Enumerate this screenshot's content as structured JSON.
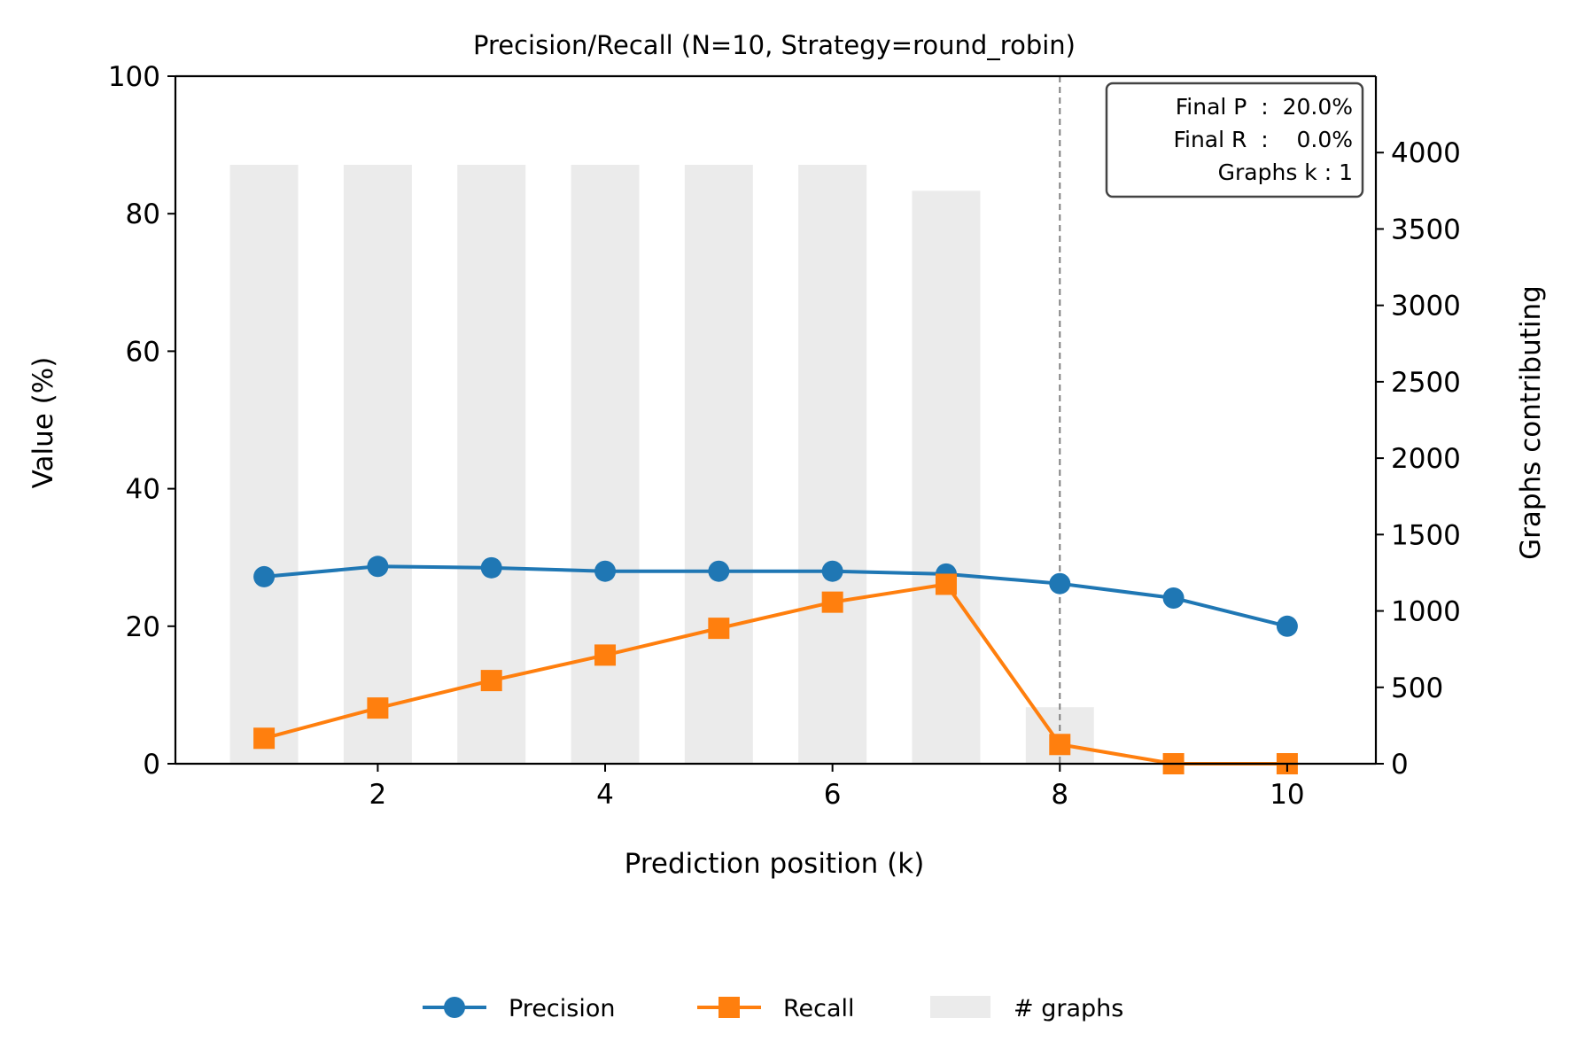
{
  "chart_data": {
    "type": "line",
    "title": "Precision/Recall (N=10, Strategy=round_robin)",
    "xlabel": "Prediction position (k)",
    "ylabel": "Value (%)",
    "y2label": "Graphs contributing",
    "xlim": [
      0.22,
      10.78
    ],
    "ylim": [
      0,
      100
    ],
    "y2lim": [
      0,
      4500
    ],
    "x_ticks": [
      2,
      4,
      6,
      8,
      10
    ],
    "y_ticks": [
      0,
      20,
      40,
      60,
      80,
      100
    ],
    "y2_ticks": [
      0,
      500,
      1000,
      1500,
      2000,
      2500,
      3000,
      3500,
      4000
    ],
    "grid": false,
    "x": [
      1,
      2,
      3,
      4,
      5,
      6,
      7,
      8,
      9,
      10
    ],
    "series": [
      {
        "name": "Precision",
        "axis": "left",
        "marker": "circle",
        "color": "#1f77b4",
        "values": [
          27.2,
          28.7,
          28.5,
          28.0,
          28.0,
          28.0,
          27.6,
          26.2,
          24.1,
          20.0
        ]
      },
      {
        "name": "Recall",
        "axis": "left",
        "marker": "square",
        "color": "#ff7f0e",
        "values": [
          3.7,
          8.1,
          12.1,
          15.8,
          19.7,
          23.5,
          26.1,
          2.8,
          0.0,
          0.0
        ]
      }
    ],
    "bars": {
      "name": "# graphs",
      "axis": "right",
      "color": "#ebebeb",
      "values": [
        3920,
        3920,
        3920,
        3920,
        3920,
        3920,
        3750,
        370,
        0,
        0
      ]
    },
    "vline": {
      "x": 8,
      "color": "#808080",
      "style": "dashed"
    },
    "annotation": {
      "lines": [
        "Final P  :  20.0%",
        "Final R  :    0.0%",
        "Graphs k : 1"
      ]
    },
    "legend": {
      "placement": "bottom-center",
      "items": [
        "Precision",
        "Recall",
        "# graphs"
      ]
    }
  }
}
